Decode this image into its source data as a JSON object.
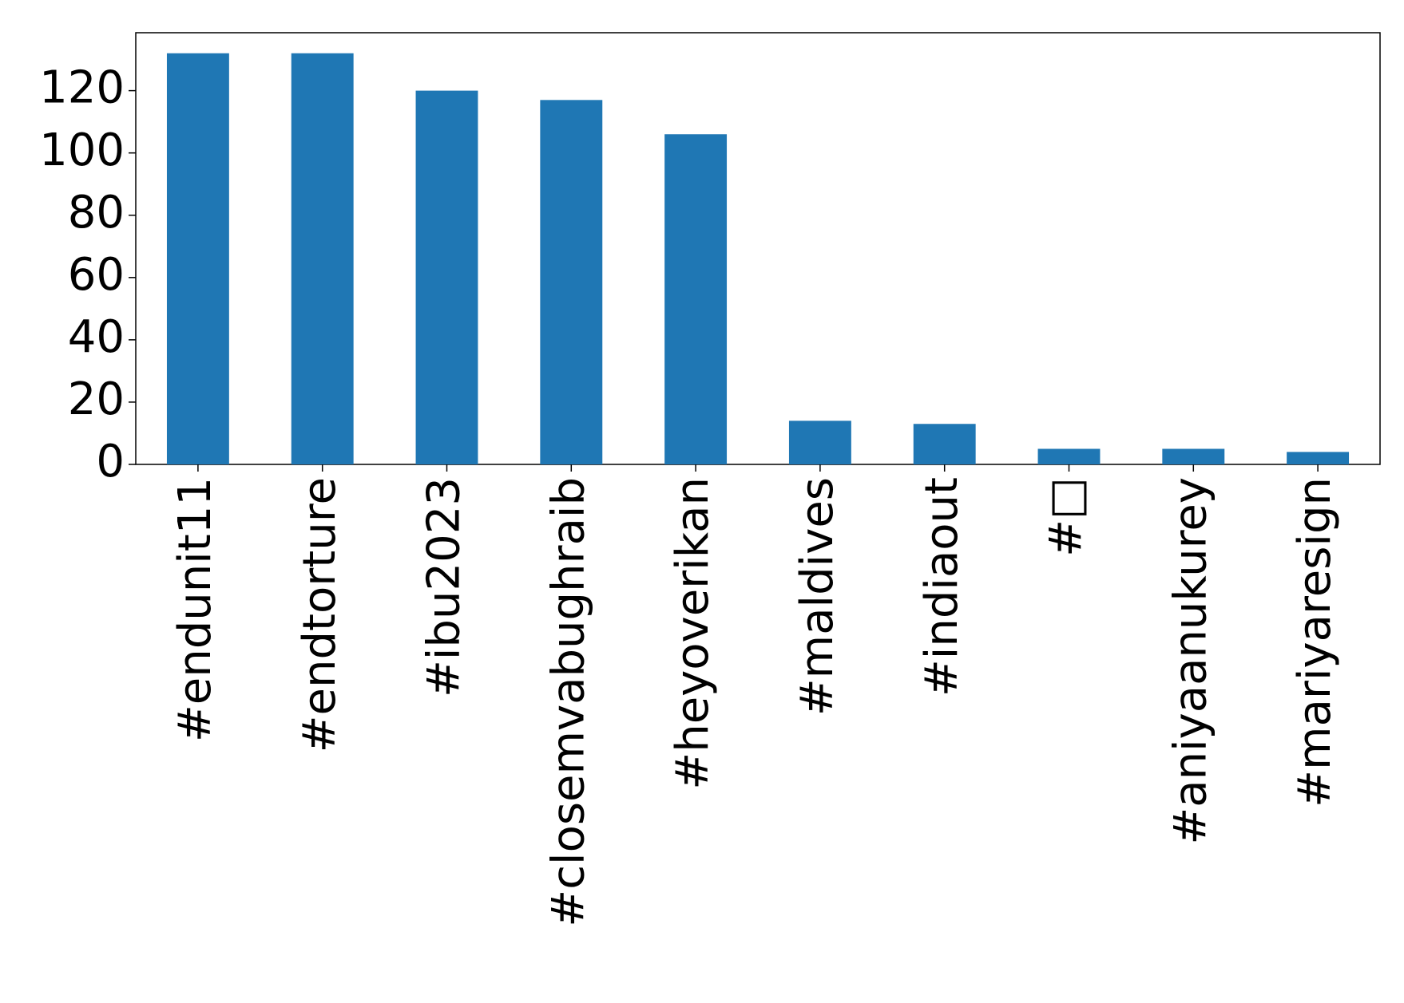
{
  "chart_data": {
    "type": "bar",
    "categories": [
      "#endunit11",
      "#endtorture",
      "#ibu2023",
      "#closemvabughraib",
      "#heyoverikan",
      "#maldives",
      "#indiaout",
      "#□",
      "#aniyaanukurey",
      "#mariyaresign"
    ],
    "values": [
      132,
      132,
      120,
      117,
      106,
      14,
      13,
      5,
      5,
      4
    ],
    "color": "#1f77b4",
    "ylim": [
      0,
      138.6
    ],
    "yticks": [
      0,
      20,
      40,
      60,
      80,
      100,
      120
    ]
  }
}
